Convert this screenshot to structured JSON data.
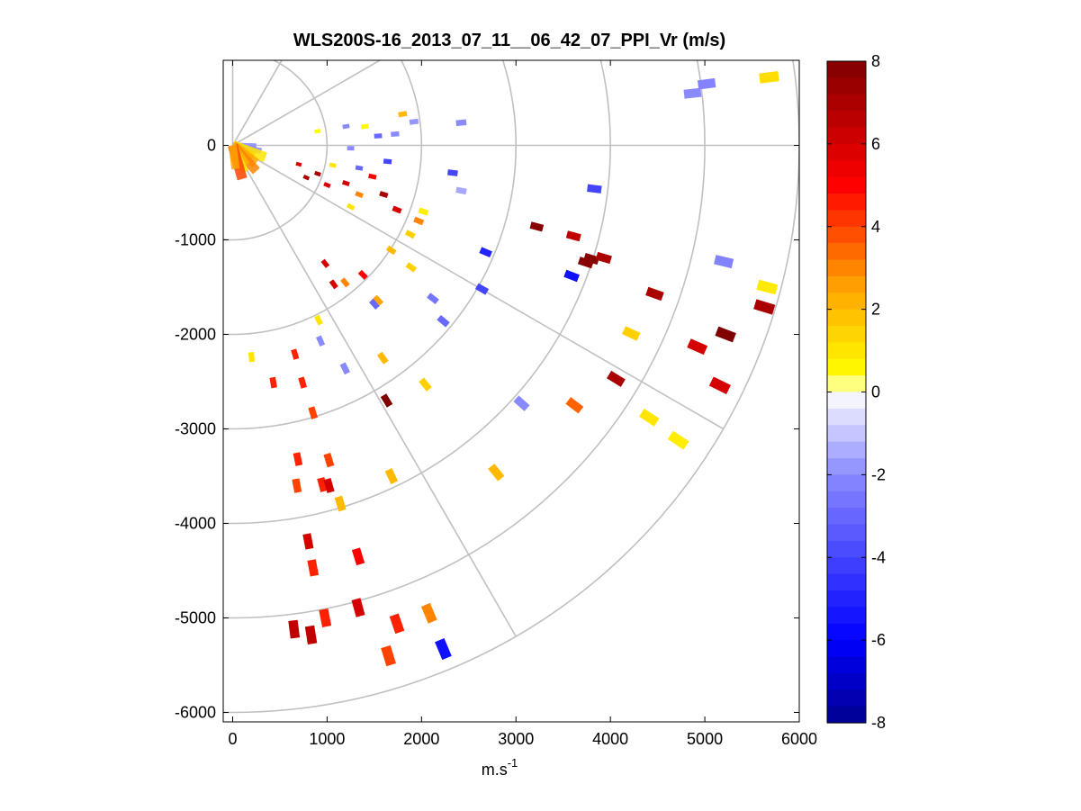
{
  "figure": {
    "background": "#ffffff"
  },
  "chart_data": {
    "type": "scatter",
    "subtype": "polar-ppi-scan",
    "title": "WLS200S-16_2013_07_11__06_42_07_PPI_Vr (m/s)",
    "xlabel_base": "m.s",
    "xlabel_exponent": "-1",
    "ylabel": "",
    "xlim": [
      -100,
      6000
    ],
    "ylim": [
      -6100,
      900
    ],
    "xticks": [
      0,
      1000,
      2000,
      3000,
      4000,
      5000,
      6000
    ],
    "xtick_labels": [
      "0",
      "1000",
      "2000",
      "3000",
      "4000",
      "5000",
      "6000"
    ],
    "yticks": [
      0,
      -1000,
      -2000,
      -3000,
      -4000,
      -5000,
      -6000
    ],
    "ytick_labels": [
      "0",
      "-1000",
      "-2000",
      "-3000",
      "-4000",
      "-5000",
      "-6000"
    ],
    "polar_grid": {
      "rings": [
        1000,
        2000,
        3000,
        4000,
        5000,
        6000
      ],
      "spokes_deg": [
        0,
        30,
        60,
        90,
        120,
        150
      ],
      "spoke_orientation": "compass, clockwise from north"
    },
    "colorbar": {
      "label": "Vr (m/s)",
      "min": -8,
      "max": 8,
      "ticks": [
        8,
        6,
        4,
        2,
        0,
        -2,
        -4,
        -6,
        -8
      ],
      "tick_labels": [
        "8",
        "6",
        "4",
        "2",
        "0",
        "-2",
        "-4",
        "-6",
        "-8"
      ],
      "colors": [
        "#00008f",
        "#0000ff",
        "#8a8aff",
        "#e8e8ff",
        "#ffffff",
        "#ffff00",
        "#ffa500",
        "#ff0000",
        "#800000"
      ]
    },
    "points": [
      {
        "x": 1800,
        "y": 330,
        "v": 2
      },
      {
        "x": 900,
        "y": 150,
        "v": 0.5
      },
      {
        "x": 1200,
        "y": 200,
        "v": -2
      },
      {
        "x": 1400,
        "y": 200,
        "v": 0.5
      },
      {
        "x": 1920,
        "y": 250,
        "v": -1.8
      },
      {
        "x": 2420,
        "y": 240,
        "v": -2
      },
      {
        "x": 4870,
        "y": 550,
        "v": -2
      },
      {
        "x": 5020,
        "y": 650,
        "v": -2.2
      },
      {
        "x": 5680,
        "y": 720,
        "v": 1.2
      },
      {
        "x": 2330,
        "y": -290,
        "v": -4
      },
      {
        "x": 2420,
        "y": -480,
        "v": -1.5
      },
      {
        "x": 2680,
        "y": -1130,
        "v": -5
      },
      {
        "x": 3830,
        "y": -460,
        "v": -4
      },
      {
        "x": 3220,
        "y": -860,
        "v": 7.8
      },
      {
        "x": 3610,
        "y": -960,
        "v": 6.5
      },
      {
        "x": 3800,
        "y": -1200,
        "v": 7.8
      },
      {
        "x": 3740,
        "y": -1240,
        "v": 7.8
      },
      {
        "x": 3590,
        "y": -1380,
        "v": -5.5
      },
      {
        "x": 3930,
        "y": -1190,
        "v": 7
      },
      {
        "x": 4470,
        "y": -1570,
        "v": 7
      },
      {
        "x": 5200,
        "y": -1230,
        "v": -2.2
      },
      {
        "x": 5660,
        "y": -1500,
        "v": 0.9
      },
      {
        "x": 5630,
        "y": -1710,
        "v": 7
      },
      {
        "x": 2120,
        "y": -1620,
        "v": -2.6
      },
      {
        "x": 2230,
        "y": -1860,
        "v": -3
      },
      {
        "x": 2640,
        "y": -1520,
        "v": -4
      },
      {
        "x": 1890,
        "y": -1290,
        "v": 1.5
      },
      {
        "x": 1540,
        "y": -1640,
        "v": 2.5
      },
      {
        "x": 4220,
        "y": -1990,
        "v": 1.5
      },
      {
        "x": 4920,
        "y": -2130,
        "v": 6
      },
      {
        "x": 5220,
        "y": -2000,
        "v": 8
      },
      {
        "x": 5160,
        "y": -2540,
        "v": 6
      },
      {
        "x": 4060,
        "y": -2470,
        "v": 7
      },
      {
        "x": 3620,
        "y": -2750,
        "v": 3.5
      },
      {
        "x": 3060,
        "y": -2730,
        "v": -2
      },
      {
        "x": 4410,
        "y": -2880,
        "v": 1
      },
      {
        "x": 4720,
        "y": -3120,
        "v": 0.8
      },
      {
        "x": 2040,
        "y": -2530,
        "v": 1.5
      },
      {
        "x": 1590,
        "y": -2250,
        "v": 2
      },
      {
        "x": 1630,
        "y": -2700,
        "v": 8
      },
      {
        "x": 1190,
        "y": -2360,
        "v": -2
      },
      {
        "x": 930,
        "y": -2070,
        "v": -2
      },
      {
        "x": 910,
        "y": -1850,
        "v": 1
      },
      {
        "x": 1680,
        "y": -3500,
        "v": 2
      },
      {
        "x": 2790,
        "y": -3460,
        "v": 2
      },
      {
        "x": 660,
        "y": -2210,
        "v": 4.5
      },
      {
        "x": 430,
        "y": -2510,
        "v": 4.5
      },
      {
        "x": 740,
        "y": -2510,
        "v": 4.5
      },
      {
        "x": 850,
        "y": -2830,
        "v": 4
      },
      {
        "x": 200,
        "y": -2240,
        "v": 1
      },
      {
        "x": 690,
        "y": -3320,
        "v": 4.5
      },
      {
        "x": 1020,
        "y": -3330,
        "v": 4
      },
      {
        "x": 950,
        "y": -3590,
        "v": 4.5
      },
      {
        "x": 1020,
        "y": -3600,
        "v": 6
      },
      {
        "x": 1140,
        "y": -3790,
        "v": 2
      },
      {
        "x": 680,
        "y": -3600,
        "v": 4
      },
      {
        "x": 800,
        "y": -4190,
        "v": 6
      },
      {
        "x": 850,
        "y": -4470,
        "v": 4.5
      },
      {
        "x": 1330,
        "y": -4350,
        "v": 5
      },
      {
        "x": 980,
        "y": -5000,
        "v": 4.5
      },
      {
        "x": 650,
        "y": -5120,
        "v": 6.5
      },
      {
        "x": 830,
        "y": -5180,
        "v": 6.5
      },
      {
        "x": 1330,
        "y": -4890,
        "v": 6
      },
      {
        "x": 1740,
        "y": -5060,
        "v": 4.5
      },
      {
        "x": 2080,
        "y": -4950,
        "v": 3
      },
      {
        "x": 1650,
        "y": -5400,
        "v": 4
      },
      {
        "x": 2230,
        "y": -5330,
        "v": -5.5
      },
      {
        "x": 1070,
        "y": -1470,
        "v": 6
      },
      {
        "x": 980,
        "y": -1250,
        "v": 6
      },
      {
        "x": 1190,
        "y": -1450,
        "v": 3
      },
      {
        "x": 1380,
        "y": -1370,
        "v": 5
      },
      {
        "x": 1680,
        "y": -1110,
        "v": 2
      },
      {
        "x": 1880,
        "y": -940,
        "v": 1.5
      },
      {
        "x": 1970,
        "y": -800,
        "v": 3
      },
      {
        "x": 2020,
        "y": -700,
        "v": 0.8
      },
      {
        "x": 1740,
        "y": -680,
        "v": 6
      },
      {
        "x": 1600,
        "y": -520,
        "v": 7
      },
      {
        "x": 1250,
        "y": -650,
        "v": 1
      },
      {
        "x": 1340,
        "y": -520,
        "v": 3
      },
      {
        "x": 1200,
        "y": -400,
        "v": 6
      },
      {
        "x": 1480,
        "y": -330,
        "v": 5
      },
      {
        "x": 1340,
        "y": -240,
        "v": -3
      },
      {
        "x": 1640,
        "y": -170,
        "v": -4
      },
      {
        "x": 1250,
        "y": -30,
        "v": -2
      },
      {
        "x": 1540,
        "y": 100,
        "v": -3
      },
      {
        "x": 1720,
        "y": 120,
        "v": -2
      },
      {
        "x": 1000,
        "y": -420,
        "v": 6
      },
      {
        "x": 900,
        "y": -300,
        "v": 7
      },
      {
        "x": 780,
        "y": -340,
        "v": 7
      },
      {
        "x": 700,
        "y": -200,
        "v": 6
      },
      {
        "x": 1060,
        "y": -210,
        "v": 1
      },
      {
        "x": 1500,
        "y": -1680,
        "v": -3
      }
    ]
  }
}
